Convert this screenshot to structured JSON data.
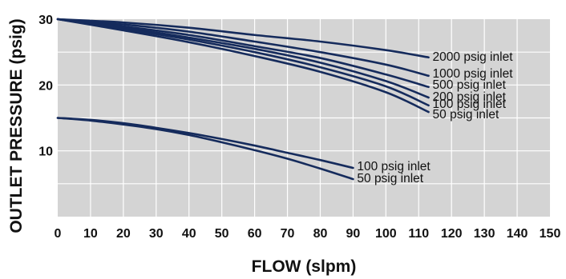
{
  "chart_data": {
    "type": "line",
    "xlabel": "FLOW (slpm)",
    "ylabel": "OUTLET PRESSURE (psig)",
    "xlim": [
      0,
      150
    ],
    "ylim": [
      0,
      30
    ],
    "x_ticks": [
      0,
      10,
      20,
      30,
      40,
      50,
      60,
      70,
      80,
      90,
      100,
      110,
      120,
      130,
      140,
      150
    ],
    "y_ticks": [
      10,
      20,
      30
    ],
    "grid": true,
    "background": "#d4d4d4",
    "line_color": "#152b5c",
    "series": [
      {
        "name": "2000 psig inlet",
        "x": [
          0,
          20,
          40,
          60,
          80,
          100,
          113
        ],
        "y": [
          30,
          29.5,
          28.7,
          27.6,
          26.6,
          25.3,
          24.2
        ]
      },
      {
        "name": "1000 psig inlet",
        "x": [
          0,
          20,
          40,
          60,
          80,
          100,
          113
        ],
        "y": [
          30,
          29.2,
          28.1,
          26.6,
          25.0,
          23.1,
          21.4
        ]
      },
      {
        "name": "500 psig inlet",
        "x": [
          0,
          20,
          40,
          60,
          80,
          100,
          113
        ],
        "y": [
          30,
          28.9,
          27.6,
          25.9,
          24.1,
          21.6,
          19.7
        ]
      },
      {
        "name": "200 psig inlet",
        "x": [
          0,
          20,
          40,
          60,
          80,
          100,
          113
        ],
        "y": [
          30,
          28.7,
          27.2,
          25.5,
          23.4,
          20.6,
          18.1
        ]
      },
      {
        "name": "100 psig inlet",
        "x": [
          0,
          20,
          40,
          60,
          80,
          100,
          113
        ],
        "y": [
          30,
          28.5,
          26.9,
          25.0,
          22.7,
          19.8,
          16.9
        ]
      },
      {
        "name": "50 psig inlet",
        "x": [
          0,
          20,
          40,
          60,
          80,
          100,
          113
        ],
        "y": [
          30,
          28.3,
          26.5,
          24.4,
          22.0,
          18.9,
          15.9
        ]
      },
      {
        "name": "100 psig inlet",
        "x": [
          0,
          10,
          20,
          30,
          40,
          50,
          60,
          70,
          80,
          90
        ],
        "y": [
          15,
          14.7,
          14.2,
          13.5,
          12.7,
          11.8,
          10.8,
          9.7,
          8.6,
          7.4
        ]
      },
      {
        "name": "50 psig inlet",
        "x": [
          0,
          10,
          20,
          30,
          40,
          50,
          60,
          70,
          80,
          90
        ],
        "y": [
          15,
          14.6,
          14.0,
          13.3,
          12.4,
          11.3,
          10.1,
          8.8,
          7.3,
          5.7
        ]
      }
    ]
  }
}
